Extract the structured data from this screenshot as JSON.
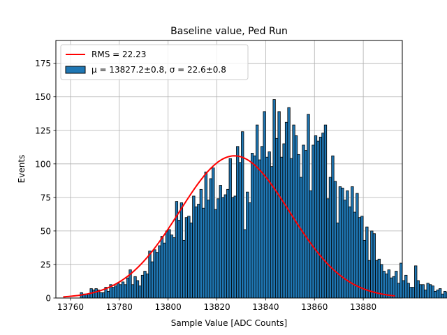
{
  "chart_data": {
    "type": "bar",
    "title": "Baseline value, Ped Run",
    "xlabel": "Sample Value [ADC Counts]",
    "ylabel": "Events",
    "xlim": [
      13754,
      13896
    ],
    "ylim": [
      0,
      192
    ],
    "xticks": [
      13760,
      13780,
      13800,
      13820,
      13840,
      13860,
      13880
    ],
    "yticks": [
      0,
      25,
      50,
      75,
      100,
      125,
      150,
      175
    ],
    "grid": true,
    "legend_position": "top-left",
    "bin_start": 13764,
    "bin_width": 1,
    "histogram_values": [
      4,
      3,
      3,
      3,
      7,
      6,
      7,
      6,
      4,
      4,
      8,
      5,
      10,
      8,
      9,
      11,
      10,
      12,
      10,
      15,
      21,
      10,
      16,
      13,
      9,
      17,
      20,
      18,
      35,
      27,
      36,
      34,
      39,
      46,
      41,
      50,
      51,
      47,
      45,
      72,
      58,
      71,
      43,
      60,
      61,
      56,
      76,
      68,
      70,
      81,
      67,
      94,
      73,
      89,
      97,
      66,
      74,
      84,
      75,
      77,
      81,
      104,
      75,
      76,
      113,
      101,
      124,
      51,
      79,
      71,
      108,
      106,
      129,
      103,
      113,
      139,
      105,
      109,
      98,
      148,
      119,
      139,
      105,
      115,
      131,
      142,
      104,
      129,
      121,
      107,
      90,
      114,
      110,
      137,
      80,
      114,
      121,
      117,
      120,
      123,
      129,
      74,
      90,
      106,
      87,
      56,
      83,
      82,
      73,
      80,
      68,
      83,
      64,
      78,
      60,
      61,
      43,
      53,
      28,
      50,
      48,
      28,
      29,
      25,
      20,
      18,
      21,
      15,
      16,
      20,
      11,
      26,
      13,
      17,
      11,
      8,
      8,
      24,
      13,
      10,
      10,
      6,
      11,
      10,
      9,
      5,
      6,
      7,
      3,
      5,
      4
    ],
    "series": [
      {
        "name": "RMS = 22.23",
        "type": "histogram",
        "color": "#1f77b4",
        "edgecolor": "#000000"
      },
      {
        "name": "μ = 13827.2±0.8, σ = 22.6±0.8",
        "type": "gaussian-fit",
        "color": "#ff0000",
        "mu": 13827.2,
        "sigma": 22.6,
        "amplitude": 106,
        "x_range": [
          13757,
          13893
        ]
      }
    ]
  }
}
